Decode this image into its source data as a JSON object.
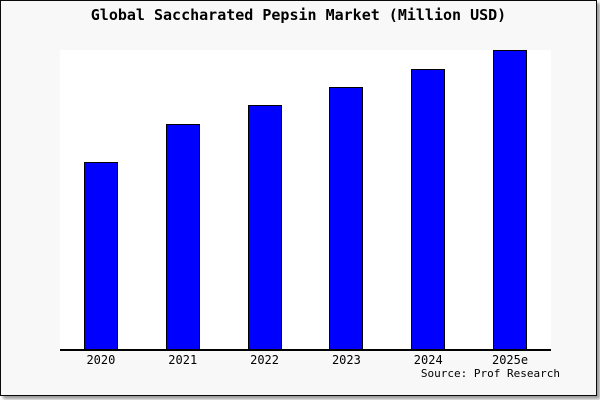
{
  "page": {
    "frame_background_color": "#f8f8f8",
    "plot_background_color": "#ffffff",
    "frame_border_color": "#0a0a0a",
    "axis_color": "#000000"
  },
  "chart_data": {
    "type": "bar",
    "title": "Global Saccharated Pepsin Market (Million USD)",
    "categories": [
      "2020",
      "2021",
      "2022",
      "2023",
      "2024",
      "2025e"
    ],
    "values_pct_of_max": [
      62.5,
      75.2,
      81.6,
      87.6,
      93.6,
      100
    ],
    "ylim": [
      0,
      100
    ],
    "value_scale_note": "no y-axis ticks or value labels shown; values estimated as percent of tallest bar",
    "bar_color": "#0000ff",
    "bar_outline_color": "#000000",
    "grid": false,
    "legend": "none",
    "x_axis": "bottom spine only",
    "source_note": "Source: Prof Research"
  }
}
